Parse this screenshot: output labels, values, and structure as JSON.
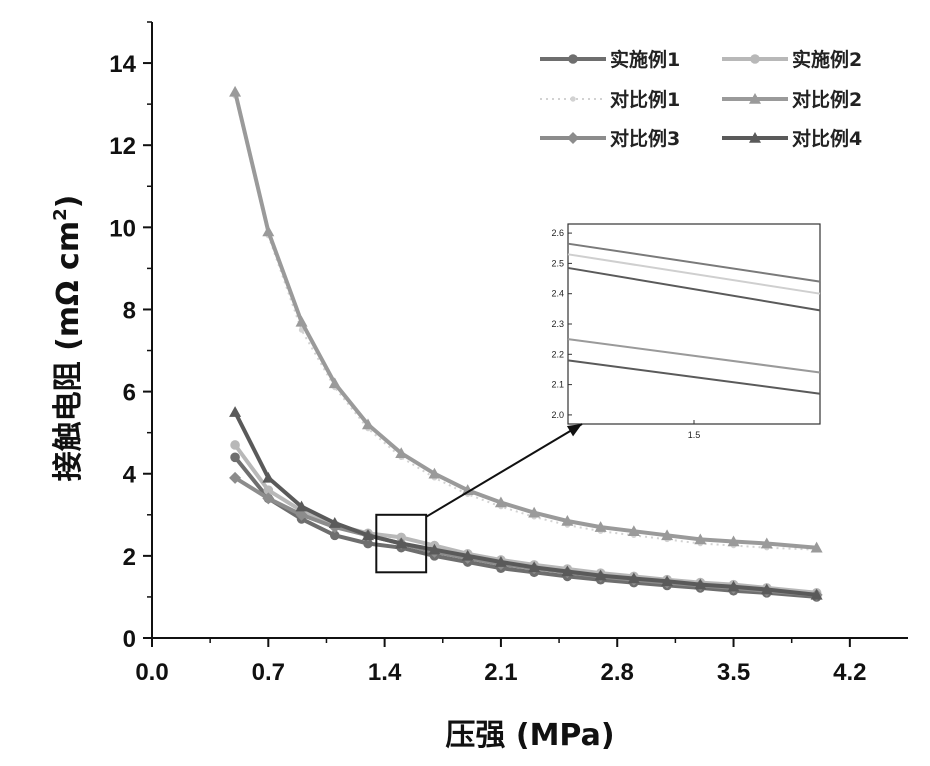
{
  "chart_data": {
    "type": "line",
    "title": "",
    "xlabel": "压强 (MPa)",
    "ylabel_main": "接触电阻 (mΩ cm",
    "ylabel_sup": "2",
    "ylabel_close": ")",
    "xlim": [
      0.0,
      4.55
    ],
    "ylim": [
      0,
      15
    ],
    "xticks": [
      "0.0",
      "0.7",
      "1.4",
      "2.1",
      "2.8",
      "3.5",
      "4.2"
    ],
    "yticks": [
      "0",
      "2",
      "4",
      "6",
      "8",
      "10",
      "12",
      "14"
    ],
    "grid": false,
    "legend_position": "top-right",
    "x": [
      0.5,
      0.7,
      0.9,
      1.1,
      1.3,
      1.5,
      1.7,
      1.9,
      2.1,
      2.3,
      2.5,
      2.7,
      2.9,
      3.1,
      3.3,
      3.5,
      3.7,
      4.0
    ],
    "series": [
      {
        "name": "实施例1",
        "color": "#6e6e6e",
        "marker": "circle",
        "values": [
          4.4,
          3.4,
          2.9,
          2.5,
          2.3,
          2.2,
          2.0,
          1.85,
          1.7,
          1.6,
          1.5,
          1.42,
          1.35,
          1.28,
          1.22,
          1.15,
          1.1,
          1.0
        ]
      },
      {
        "name": "实施例2",
        "color": "#b8b8b8",
        "marker": "circle",
        "values": [
          4.7,
          3.6,
          3.1,
          2.75,
          2.55,
          2.45,
          2.25,
          2.05,
          1.9,
          1.78,
          1.68,
          1.58,
          1.5,
          1.42,
          1.35,
          1.3,
          1.22,
          1.1
        ]
      },
      {
        "name": "对比例1",
        "color": "#d2d2d2",
        "marker": "dot",
        "values": [
          13.2,
          9.8,
          7.5,
          6.1,
          5.1,
          4.4,
          3.9,
          3.5,
          3.2,
          2.95,
          2.75,
          2.6,
          2.5,
          2.4,
          2.3,
          2.25,
          2.2,
          2.15
        ]
      },
      {
        "name": "对比例2",
        "color": "#9a9a9a",
        "marker": "triangle",
        "values": [
          13.3,
          9.9,
          7.7,
          6.2,
          5.2,
          4.5,
          4.0,
          3.6,
          3.3,
          3.05,
          2.85,
          2.7,
          2.6,
          2.5,
          2.4,
          2.35,
          2.3,
          2.2
        ]
      },
      {
        "name": "对比例3",
        "color": "#8c8c8c",
        "marker": "diamond",
        "values": [
          3.9,
          3.4,
          3.0,
          2.7,
          2.5,
          2.3,
          2.1,
          1.95,
          1.8,
          1.7,
          1.6,
          1.5,
          1.42,
          1.35,
          1.28,
          1.22,
          1.15,
          1.05
        ]
      },
      {
        "name": "对比例4",
        "color": "#5a5a5a",
        "marker": "triangle",
        "values": [
          5.5,
          3.9,
          3.2,
          2.8,
          2.5,
          2.3,
          2.15,
          2.0,
          1.85,
          1.72,
          1.62,
          1.52,
          1.45,
          1.38,
          1.3,
          1.25,
          1.18,
          1.05
        ]
      }
    ],
    "inset": {
      "xtick": "1.5",
      "yticks": [
        "2.0",
        "2.1",
        "2.2",
        "2.3",
        "2.4",
        "2.5",
        "2.6"
      ],
      "ylim": [
        1.97,
        2.63
      ],
      "xlim": [
        1.35,
        1.65
      ],
      "zoom_box": {
        "x": [
          1.35,
          1.65
        ],
        "y": [
          1.6,
          3.0
        ]
      },
      "lines": [
        {
          "color": "#7a7a7a",
          "start": 2.565,
          "end": 2.44
        },
        {
          "color": "#cfcfcf",
          "start": 2.53,
          "end": 2.4
        },
        {
          "color": "#5a5a5a",
          "start": 2.485,
          "end": 2.345
        },
        {
          "color": "#9a9a9a",
          "start": 2.25,
          "end": 2.14
        },
        {
          "color": "#5a5a5a",
          "start": 2.18,
          "end": 2.07
        }
      ]
    }
  }
}
